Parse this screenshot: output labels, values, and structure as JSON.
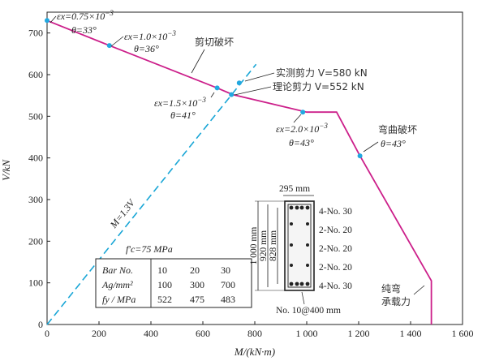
{
  "chart_data": {
    "type": "line",
    "xlabel": "M/(kN·m)",
    "ylabel": "V/kN",
    "xlim": [
      0,
      1600
    ],
    "ylim": [
      0,
      750
    ],
    "x_ticks": [
      "0",
      "200",
      "400",
      "600",
      "800",
      "1 000",
      "1 200",
      "1 400",
      "1 600"
    ],
    "y_ticks": [
      "0",
      "100",
      "200",
      "300",
      "400",
      "500",
      "600",
      "700"
    ],
    "grid": false,
    "colors": {
      "interaction": "#cc1f8a",
      "line_m13v": "#19a6d6",
      "points": "#22a8e0"
    },
    "series": [
      {
        "kind": "interaction-curve",
        "x": [
          0,
          240,
          655,
          715,
          1000,
          1115,
          1205,
          1480,
          1480
        ],
        "y": [
          730,
          670,
          568,
          552,
          510,
          510,
          405,
          105,
          0
        ]
      },
      {
        "kind": "line",
        "x": [
          0,
          805
        ],
        "y": [
          0,
          625
        ]
      }
    ],
    "points": [
      {
        "x": 0,
        "y": 730
      },
      {
        "x": 240,
        "y": 670
      },
      {
        "x": 655,
        "y": 568
      },
      {
        "x": 710,
        "y": 552
      },
      {
        "x": 740,
        "y": 580
      },
      {
        "x": 985,
        "y": 510
      },
      {
        "x": 1205,
        "y": 405
      }
    ],
    "annotations": {
      "p1": {
        "strain_prefix": "εx=0.75×10",
        "exp": "−3",
        "theta": "θ=33°"
      },
      "p2": {
        "strain_prefix": "εx=1.0×10",
        "exp": "−3",
        "theta": "θ=36°"
      },
      "p3": {
        "strain_prefix": "εx=1.5×10",
        "exp": "−3",
        "theta": "θ=41°"
      },
      "p4": {
        "strain_prefix": "εx=2.0×10",
        "exp": "−3",
        "theta": "θ=43°"
      },
      "shear_failure": "剪切破坏",
      "flexural_failure": "弯曲破坏",
      "flexural_theta": "θ=43°",
      "measured_shear": "实测剪力 V=580 kN",
      "theoretical_shear": "理论剪力 V=552 kN",
      "pure_bending_1": "纯弯",
      "pure_bending_2": "承载力",
      "line_label": "M=1.3V",
      "fc": "f′c=75 MPa"
    },
    "table": {
      "rows": [
        [
          "Bar No.",
          "10",
          "20",
          "30"
        ],
        [
          "Ag/mm²",
          "100",
          "300",
          "700"
        ],
        [
          "fy / MPa",
          "522",
          "475",
          "483"
        ]
      ]
    },
    "section": {
      "width_label": "295 mm",
      "dim_1000": "1 000 mm",
      "dim_920": "920 mm",
      "dim_828": "828 mm",
      "bars": [
        "4-No. 30",
        "2-No. 20",
        "2-No. 20",
        "2-No. 20",
        "4-No. 30"
      ],
      "stirrup": "No. 10@400 mm"
    }
  }
}
